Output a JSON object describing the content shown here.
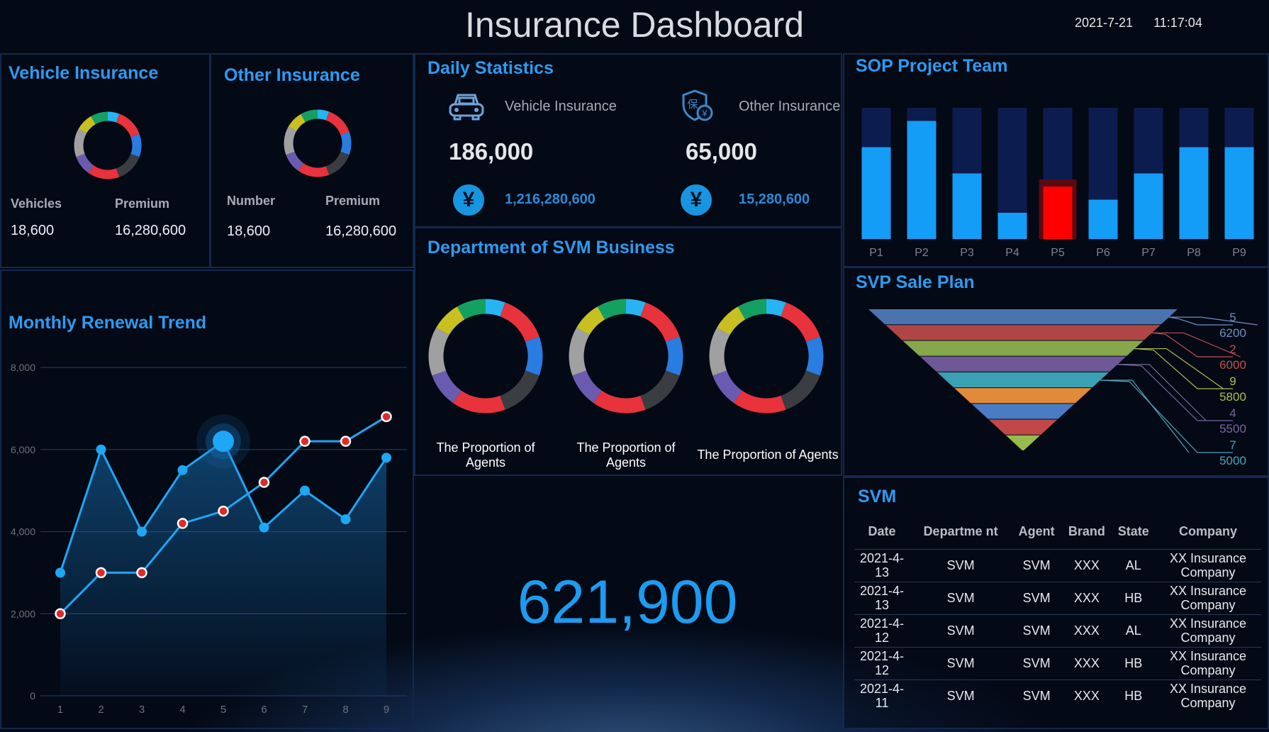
{
  "header": {
    "title": "Insurance Dashboard",
    "date": "2021-7-21",
    "time": "11:17:04"
  },
  "vehicle": {
    "title": "Vehicle Insurance",
    "label1": "Vehicles",
    "label2": "Premium",
    "value1": "18,600",
    "value2": "16,280,600"
  },
  "other": {
    "title": "Other Insurance",
    "label1": "Number",
    "label2": "Premium",
    "value1": "18,600",
    "value2": "16,280,600"
  },
  "daily": {
    "title": "Daily Statistics",
    "vehicle_label": "Vehicle Insurance",
    "vehicle_count": "186,000",
    "vehicle_amount": "1,216,280,600",
    "other_label": "Other Insurance",
    "other_count": "65,000",
    "other_amount": "15,280,600",
    "currency_symbol": "¥",
    "icons": [
      "car-icon",
      "insurance-shield-icon",
      "yen-icon"
    ]
  },
  "department": {
    "title": "Department of SVM Business",
    "captions": [
      "The Proportion of Agents",
      "The Proportion of Agents",
      "The Proportion of Agents"
    ]
  },
  "donut_colors": [
    "#26b5f2",
    "#e8323c",
    "#2a7de0",
    "#3a3d42",
    "#e8323c",
    "#6b5bb0",
    "#a0a0a0",
    "#c8c020",
    "#14a060"
  ],
  "total": "621,900",
  "chart_data": [
    {
      "type": "bar",
      "title": "SOP Project Team",
      "categories": [
        "P1",
        "P2",
        "P3",
        "P4",
        "P5",
        "P6",
        "P7",
        "P8",
        "P9"
      ],
      "values": [
        70,
        90,
        50,
        20,
        40,
        30,
        50,
        70,
        70
      ],
      "ylim": [
        0,
        100
      ],
      "highlight": "P5",
      "colors": {
        "bar": "#139df7",
        "track": "#0d1c4e",
        "highlight": "#ff0000"
      }
    },
    {
      "type": "funnel",
      "title": "SVP Sale Plan",
      "band_colors": [
        "#4a74b0",
        "#b04545",
        "#86a84a",
        "#6e5896",
        "#3aa0b4",
        "#e08a3a",
        "#4a7cc4",
        "#c04848",
        "#96bc4e"
      ],
      "labels": [
        {
          "name": "5",
          "value": 6200,
          "color": "#6f8fc2"
        },
        {
          "name": "2",
          "value": 6000,
          "color": "#c05050"
        },
        {
          "name": "9",
          "value": 5800,
          "color": "#a8c050"
        },
        {
          "name": "4",
          "value": 5500,
          "color": "#7a64a0"
        },
        {
          "name": "7",
          "value": 5000,
          "color": "#4fa3b8"
        }
      ]
    },
    {
      "type": "line",
      "title": "Monthly Renewal Trend",
      "x": [
        1,
        2,
        3,
        4,
        5,
        6,
        7,
        8,
        9
      ],
      "ylim": [
        0,
        8000
      ],
      "yticks": [
        "0",
        "2,000",
        "4,000",
        "6,000",
        "8,000"
      ],
      "grid": true,
      "series": [
        {
          "values": [
            3000,
            6000,
            4000,
            5500,
            6200,
            4100,
            5000,
            4300,
            5800
          ],
          "color": "#1da7f5",
          "area": true
        },
        {
          "values": [
            2000,
            3000,
            3000,
            4200,
            4500,
            5200,
            6200,
            6200,
            6800
          ],
          "color": "#1da7f5",
          "marker": "#e02a2a"
        }
      ]
    }
  ],
  "svm": {
    "title": "SVM",
    "columns": [
      "Date",
      "Departme nt",
      "Agent",
      "Brand",
      "State",
      "Company"
    ],
    "rows": [
      [
        "2021-4-13",
        "SVM",
        "SVM",
        "XXX",
        "AL",
        "XX Insurance Company"
      ],
      [
        "2021-4-13",
        "SVM",
        "SVM",
        "XXX",
        "HB",
        "XX Insurance Company"
      ],
      [
        "2021-4-12",
        "SVM",
        "SVM",
        "XXX",
        "AL",
        "XX Insurance Company"
      ],
      [
        "2021-4-12",
        "SVM",
        "SVM",
        "XXX",
        "HB",
        "XX Insurance Company"
      ],
      [
        "2021-4-11",
        "SVM",
        "SVM",
        "XXX",
        "HB",
        "XX Insurance Company"
      ]
    ]
  }
}
